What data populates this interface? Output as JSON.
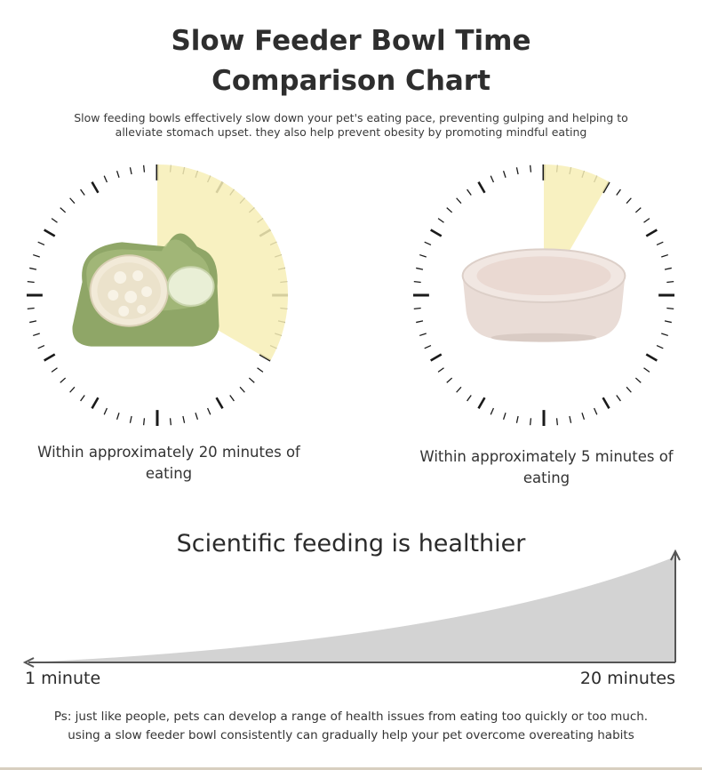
{
  "header": {
    "title_line1": "Slow Feeder Bowl Time",
    "title_line2": "Comparison Chart",
    "subtitle_line1": "Slow feeding bowls effectively slow down your pet's eating pace, preventing gulping and helping to",
    "subtitle_line2": "alleviate stomach upset. they also help prevent obesity by promoting mindful eating"
  },
  "comparison": {
    "slow_bowl": {
      "minutes": 20,
      "caption_line1": "Within approximately 20 minutes of",
      "caption_line2": "eating",
      "bowl_color": "#8fa667"
    },
    "regular_bowl": {
      "minutes": 5,
      "caption_line1": "Within approximately 5 minutes of",
      "caption_line2": "eating",
      "bowl_color": "#e9dcd6"
    },
    "highlight_color": "#f7eeb6"
  },
  "health_scale": {
    "heading": "Scientific feeding is healthier",
    "min_label": "1 minute",
    "max_label": "20 minutes"
  },
  "footer": {
    "ps_line1": "Ps: just like people, pets can develop a range of health issues from eating too quickly or too much.",
    "ps_line2": "using a slow feeder bowl consistently can gradually help your pet overcome overeating habits"
  }
}
